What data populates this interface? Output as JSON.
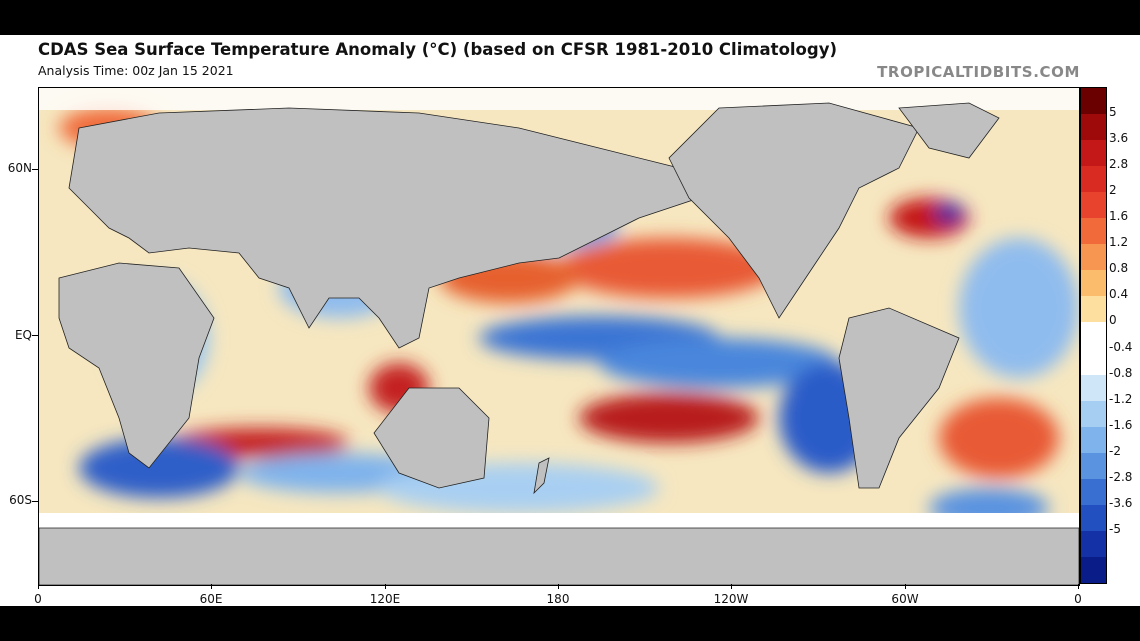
{
  "title": "CDAS Sea Surface Temperature Anomaly (°C) (based on CFSR 1981-2010 Climatology)",
  "subtitle": "Analysis Time: 00z Jan 15 2021",
  "credit": "TROPICALTIDBITS.COM",
  "lat_labels": [
    "60N",
    "EQ",
    "60S"
  ],
  "lon_labels": [
    "0",
    "60E",
    "120E",
    "180",
    "120W",
    "60W",
    "0"
  ],
  "colorbar": {
    "labels": [
      "5",
      "3.6",
      "2.8",
      "2",
      "1.6",
      "1.2",
      "0.8",
      "0.4",
      "0",
      "-0.4",
      "-0.8",
      "-1.2",
      "-1.6",
      "-2",
      "-2.8",
      "-3.6",
      "-5"
    ],
    "colors": [
      "#6b0000",
      "#9e0a0a",
      "#c41818",
      "#d92b22",
      "#e8432d",
      "#f06a3a",
      "#f69651",
      "#fbbc6c",
      "#fde0a0",
      "#ffffff",
      "#ffffff",
      "#cfe6f8",
      "#a6cdf2",
      "#7fb3ec",
      "#5a93e0",
      "#3a6fd2",
      "#2250c0",
      "#1432a6",
      "#0a1c88"
    ]
  },
  "colors": {
    "land": "#c0c0c0",
    "ice": "#ffffff",
    "frame_bg": "#000000"
  }
}
